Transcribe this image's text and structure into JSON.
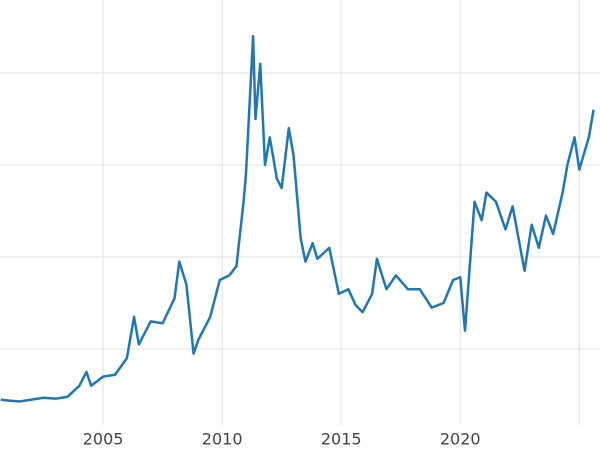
{
  "chart_data": {
    "type": "line",
    "x": [
      2000.7,
      2001.0,
      2001.5,
      2002.0,
      2002.5,
      2003.0,
      2003.5,
      2004.0,
      2004.3,
      2004.5,
      2005.0,
      2005.5,
      2006.0,
      2006.3,
      2006.5,
      2007.0,
      2007.5,
      2008.0,
      2008.2,
      2008.5,
      2008.8,
      2009.0,
      2009.5,
      2009.9,
      2010.3,
      2010.6,
      2010.9,
      2011.0,
      2011.3,
      2011.4,
      2011.6,
      2011.8,
      2012.0,
      2012.3,
      2012.5,
      2012.8,
      2013.0,
      2013.3,
      2013.5,
      2013.8,
      2014.0,
      2014.5,
      2014.9,
      2015.3,
      2015.6,
      2015.9,
      2016.3,
      2016.5,
      2016.9,
      2017.3,
      2017.8,
      2018.3,
      2018.8,
      2019.3,
      2019.7,
      2020.0,
      2020.2,
      2020.6,
      2020.9,
      2021.1,
      2021.5,
      2021.9,
      2022.2,
      2022.7,
      2023.0,
      2023.3,
      2023.6,
      2023.9,
      2024.3,
      2024.5,
      2024.8,
      2025.0,
      2025.4,
      2025.6
    ],
    "series": [
      {
        "color": "#1f77b4",
        "values": [
          4.5,
          4.4,
          4.3,
          4.5,
          4.7,
          4.6,
          4.8,
          6.0,
          7.5,
          6.0,
          7.0,
          7.2,
          9.0,
          13.5,
          10.5,
          13.0,
          12.8,
          15.5,
          19.5,
          17.0,
          9.5,
          11.0,
          13.5,
          17.5,
          18.0,
          19.0,
          26.0,
          29.0,
          44.0,
          35.0,
          41.0,
          30.0,
          33.0,
          28.5,
          27.5,
          34.0,
          31.0,
          22.0,
          19.5,
          21.5,
          19.8,
          21.0,
          16.0,
          16.5,
          14.8,
          14.0,
          16.0,
          19.8,
          16.5,
          18.0,
          16.5,
          16.5,
          14.5,
          15.0,
          17.5,
          17.8,
          12.0,
          26.0,
          24.0,
          27.0,
          26.0,
          23.0,
          25.5,
          18.5,
          23.5,
          21.0,
          24.5,
          22.5,
          27.0,
          30.0,
          33.0,
          29.5,
          33.0,
          36.0
        ]
      }
    ],
    "xlim": [
      2000.67,
      2025.87
    ],
    "xticks": [
      2005,
      2010,
      2015,
      2020,
      2025
    ],
    "xtick_labels": [
      "2005",
      "2010",
      "2015",
      "2020",
      null
    ],
    "ylim": [
      1.74,
      47.93
    ],
    "yticks": [
      10,
      20,
      30,
      40
    ],
    "grid": true
  }
}
